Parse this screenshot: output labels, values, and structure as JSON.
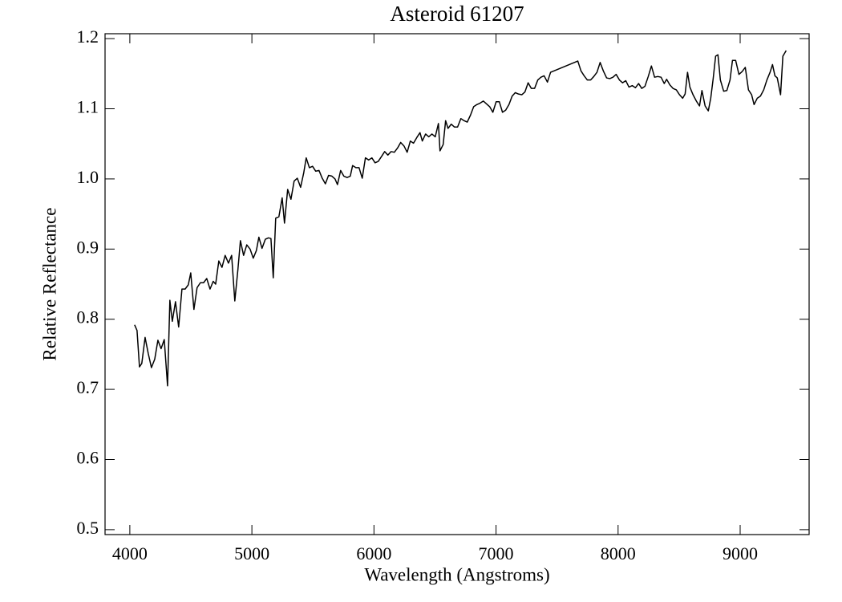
{
  "chart_data": {
    "type": "line",
    "title": "Asteroid 61207",
    "x_label": "Wavelength (Angstroms)",
    "y_label": "Relative Reflectance",
    "xlim": [
      3797,
      9565
    ],
    "ylim": [
      0.493,
      1.207
    ],
    "xticks": [
      4000,
      5000,
      6000,
      7000,
      8000,
      9000
    ],
    "yticks": [
      0.5,
      0.6,
      0.7,
      0.8,
      0.9,
      {
        "value": 1,
        "label": "1.0"
      },
      1.1,
      1.2
    ],
    "grid": false,
    "series": [
      {
        "color": "#000000",
        "x": [
          4039,
          4059,
          4079,
          4098,
          4125,
          4151,
          4177,
          4204,
          4230,
          4256,
          4282,
          4309,
          4328,
          4348,
          4374,
          4400,
          4427,
          4453,
          4479,
          4499,
          4525,
          4551,
          4578,
          4604,
          4630,
          4657,
          4683,
          4703,
          4729,
          4755,
          4781,
          4808,
          4834,
          4860,
          4886,
          4906,
          4932,
          4958,
          4985,
          5011,
          5037,
          5057,
          5083,
          5110,
          5136,
          5156,
          5175,
          5195,
          5221,
          5248,
          5267,
          5293,
          5320,
          5346,
          5372,
          5399,
          5425,
          5445,
          5471,
          5497,
          5523,
          5550,
          5576,
          5602,
          5628,
          5655,
          5681,
          5701,
          5727,
          5753,
          5780,
          5806,
          5825,
          5852,
          5878,
          5904,
          5930,
          5957,
          5983,
          6009,
          6035,
          6062,
          6088,
          6114,
          6140,
          6167,
          6193,
          6219,
          6246,
          6272,
          6298,
          6324,
          6351,
          6377,
          6396,
          6423,
          6449,
          6475,
          6502,
          6528,
          6541,
          6567,
          6587,
          6607,
          6633,
          6659,
          6685,
          6712,
          6738,
          6764,
          6791,
          6817,
          6843,
          6869,
          6896,
          6922,
          6948,
          6974,
          7001,
          7027,
          7053,
          7079,
          7106,
          7132,
          7158,
          7184,
          7211,
          7237,
          7263,
          7289,
          7316,
          7342,
          7368,
          7394,
          7421,
          7447,
          7670,
          7696,
          7722,
          7748,
          7775,
          7801,
          7827,
          7853,
          7879,
          7906,
          7932,
          7958,
          7984,
          8011,
          8037,
          8063,
          8089,
          8116,
          8142,
          8168,
          8194,
          8220,
          8247,
          8273,
          8299,
          8325,
          8352,
          8378,
          8398,
          8424,
          8450,
          8477,
          8503,
          8529,
          8549,
          8569,
          8588,
          8614,
          8641,
          8667,
          8687,
          8713,
          8739,
          8759,
          8779,
          8799,
          8818,
          8838,
          8865,
          8891,
          8917,
          8937,
          8963,
          8990,
          9016,
          9042,
          9068,
          9094,
          9114,
          9140,
          9166,
          9193,
          9219,
          9245,
          9265,
          9285,
          9304,
          9331,
          9350,
          9377
        ],
        "values": [
          0.792,
          0.784,
          0.732,
          0.737,
          0.774,
          0.751,
          0.731,
          0.743,
          0.77,
          0.758,
          0.771,
          0.705,
          0.827,
          0.797,
          0.825,
          0.789,
          0.843,
          0.843,
          0.849,
          0.866,
          0.814,
          0.845,
          0.852,
          0.852,
          0.858,
          0.843,
          0.854,
          0.85,
          0.883,
          0.874,
          0.891,
          0.88,
          0.891,
          0.826,
          0.872,
          0.912,
          0.891,
          0.906,
          0.9,
          0.887,
          0.898,
          0.917,
          0.901,
          0.914,
          0.916,
          0.915,
          0.859,
          0.944,
          0.946,
          0.973,
          0.937,
          0.985,
          0.971,
          0.997,
          1.001,
          0.988,
          1.009,
          1.03,
          1.016,
          1.018,
          1.011,
          1.012,
          1.001,
          0.993,
          1.005,
          1.004,
          1.0,
          0.992,
          1.012,
          1.004,
          1.002,
          1.004,
          1.019,
          1.016,
          1.016,
          1.001,
          1.03,
          1.027,
          1.03,
          1.023,
          1.025,
          1.032,
          1.039,
          1.034,
          1.039,
          1.038,
          1.044,
          1.052,
          1.047,
          1.038,
          1.054,
          1.051,
          1.059,
          1.066,
          1.054,
          1.064,
          1.06,
          1.064,
          1.06,
          1.079,
          1.04,
          1.049,
          1.083,
          1.072,
          1.078,
          1.074,
          1.074,
          1.086,
          1.083,
          1.081,
          1.091,
          1.103,
          1.106,
          1.108,
          1.111,
          1.107,
          1.103,
          1.095,
          1.11,
          1.11,
          1.095,
          1.098,
          1.106,
          1.118,
          1.123,
          1.121,
          1.12,
          1.124,
          1.137,
          1.129,
          1.129,
          1.141,
          1.145,
          1.147,
          1.138,
          1.152,
          1.168,
          1.154,
          1.147,
          1.141,
          1.141,
          1.146,
          1.152,
          1.166,
          1.154,
          1.144,
          1.143,
          1.145,
          1.149,
          1.141,
          1.137,
          1.14,
          1.131,
          1.133,
          1.13,
          1.136,
          1.129,
          1.132,
          1.146,
          1.161,
          1.145,
          1.146,
          1.145,
          1.136,
          1.142,
          1.134,
          1.129,
          1.127,
          1.12,
          1.115,
          1.121,
          1.152,
          1.131,
          1.12,
          1.111,
          1.104,
          1.126,
          1.104,
          1.097,
          1.115,
          1.143,
          1.175,
          1.177,
          1.141,
          1.125,
          1.126,
          1.141,
          1.169,
          1.169,
          1.149,
          1.153,
          1.159,
          1.127,
          1.12,
          1.106,
          1.115,
          1.118,
          1.127,
          1.141,
          1.152,
          1.163,
          1.147,
          1.144,
          1.12,
          1.175,
          1.183
        ]
      }
    ]
  }
}
